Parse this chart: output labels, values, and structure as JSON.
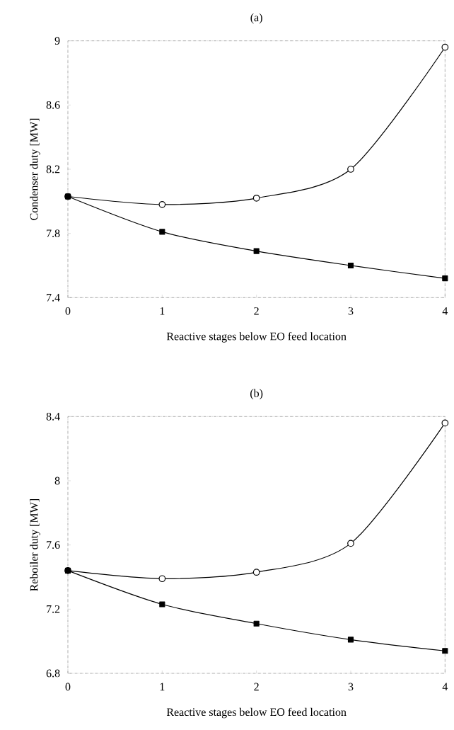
{
  "chart_data": [
    {
      "type": "line",
      "title": "(a)",
      "xlabel": "Reactive stages below EO feed location",
      "ylabel": "Condenser duty [MW]",
      "x": [
        0,
        1,
        2,
        3,
        4
      ],
      "xlim": [
        0,
        4
      ],
      "xticks": [
        0,
        1,
        2,
        3,
        4
      ],
      "ylim": [
        7.4,
        9
      ],
      "yticks": [
        7.4,
        7.8,
        8.2,
        8.6,
        9
      ],
      "series": [
        {
          "color": "#000000",
          "marker": "circle",
          "values": [
            8.03,
            7.98,
            8.02,
            8.2,
            8.96
          ]
        },
        {
          "color": "#000000",
          "marker": "square",
          "values": [
            8.03,
            7.81,
            7.69,
            7.6,
            7.52
          ]
        }
      ]
    },
    {
      "type": "line",
      "title": "(b)",
      "xlabel": "Reactive stages below EO feed location",
      "ylabel": "Reboiler duty [MW]",
      "x": [
        0,
        1,
        2,
        3,
        4
      ],
      "xlim": [
        0,
        4
      ],
      "xticks": [
        0,
        1,
        2,
        3,
        4
      ],
      "ylim": [
        6.8,
        8.4
      ],
      "yticks": [
        6.8,
        7.2,
        7.6,
        8,
        8.4
      ],
      "series": [
        {
          "color": "#000000",
          "marker": "circle",
          "values": [
            7.44,
            7.39,
            7.43,
            7.61,
            8.36
          ]
        },
        {
          "color": "#000000",
          "marker": "square",
          "values": [
            7.44,
            7.23,
            7.11,
            7.01,
            6.94
          ]
        }
      ]
    }
  ]
}
